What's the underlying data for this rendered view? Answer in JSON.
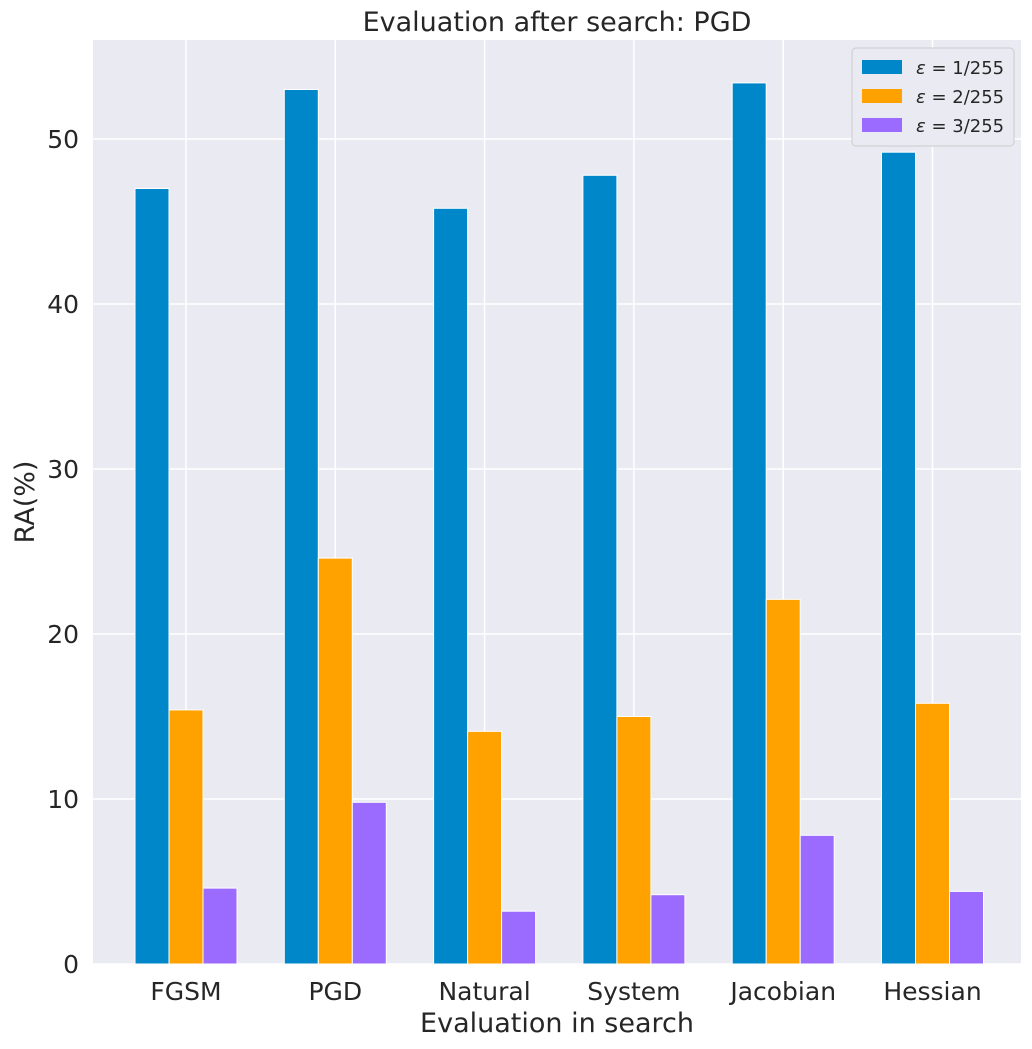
{
  "chart_data": {
    "type": "bar",
    "title": "Evaluation after search: PGD",
    "xlabel": "Evaluation in search",
    "ylabel": "RA(%)",
    "categories": [
      "FGSM",
      "PGD",
      "Natural",
      "System",
      "Jacobian",
      "Hessian"
    ],
    "ylim": [
      0,
      56
    ],
    "yticks": [
      0,
      10,
      20,
      30,
      40,
      50
    ],
    "grid": true,
    "legend_position": "top-right",
    "series": [
      {
        "name": "ε = 1/255",
        "eps": "ε",
        "rest": " = 1/255",
        "color": "#0087C9",
        "values": [
          47.0,
          53.0,
          45.8,
          47.8,
          53.4,
          49.2
        ]
      },
      {
        "name": "ε = 2/255",
        "eps": "ε",
        "rest": " = 2/255",
        "color": "#FFA200",
        "values": [
          15.4,
          24.6,
          14.1,
          15.0,
          22.1,
          15.8
        ]
      },
      {
        "name": "ε = 3/255",
        "eps": "ε",
        "rest": " = 3/255",
        "color": "#9B6BFF",
        "values": [
          4.6,
          9.8,
          3.2,
          4.2,
          7.8,
          4.4
        ]
      }
    ]
  }
}
